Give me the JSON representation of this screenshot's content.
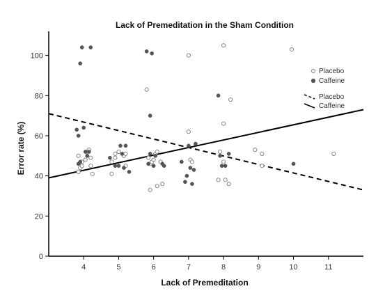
{
  "chart_data": {
    "type": "scatter",
    "title": "Lack of Premeditation in the Sham Condition",
    "xlabel": "Lack of Premeditation",
    "ylabel": "Error rate (%)",
    "xlim": [
      3,
      12
    ],
    "ylim": [
      0,
      112
    ],
    "xticks": [
      4,
      5,
      6,
      7,
      8,
      9,
      10,
      11
    ],
    "yticks": [
      0,
      20,
      40,
      60,
      80,
      100
    ],
    "grid": false,
    "legend_position": "right",
    "colors": {
      "placebo_marker": "#888888",
      "caffeine_marker": "#555555",
      "lines": "#000000"
    },
    "series": [
      {
        "name": "Placebo",
        "marker": "open-circle",
        "points": [
          [
            3.85,
            42
          ],
          [
            3.9,
            44
          ],
          [
            3.95,
            45
          ],
          [
            3.95,
            47
          ],
          [
            3.85,
            50
          ],
          [
            4.05,
            48
          ],
          [
            4.1,
            52
          ],
          [
            4.15,
            53
          ],
          [
            4.2,
            49
          ],
          [
            4.2,
            45
          ],
          [
            4.25,
            41
          ],
          [
            4.8,
            41
          ],
          [
            4.8,
            47
          ],
          [
            4.9,
            49
          ],
          [
            4.9,
            51
          ],
          [
            5.0,
            52
          ],
          [
            5.2,
            45
          ],
          [
            5.15,
            50
          ],
          [
            5.2,
            51
          ],
          [
            5.8,
            83
          ],
          [
            5.85,
            49
          ],
          [
            5.9,
            46
          ],
          [
            5.95,
            47
          ],
          [
            6.0,
            48
          ],
          [
            6.05,
            51
          ],
          [
            6.1,
            52
          ],
          [
            6.2,
            47
          ],
          [
            6.25,
            36
          ],
          [
            6.1,
            35
          ],
          [
            5.9,
            33
          ],
          [
            7.0,
            100
          ],
          [
            7.0,
            62
          ],
          [
            7.05,
            48
          ],
          [
            7.1,
            47
          ],
          [
            7.9,
            52
          ],
          [
            7.85,
            38
          ],
          [
            8.0,
            47
          ],
          [
            8.0,
            66
          ],
          [
            8.0,
            105
          ],
          [
            8.05,
            38
          ],
          [
            8.15,
            36
          ],
          [
            8.2,
            78
          ],
          [
            8.9,
            53
          ],
          [
            9.1,
            51
          ],
          [
            9.1,
            45
          ],
          [
            9.95,
            103
          ],
          [
            11.15,
            51
          ]
        ]
      },
      {
        "name": "Caffeine",
        "marker": "filled-circle",
        "points": [
          [
            3.8,
            63
          ],
          [
            3.85,
            60
          ],
          [
            3.85,
            46
          ],
          [
            3.9,
            47
          ],
          [
            3.9,
            96
          ],
          [
            3.95,
            104
          ],
          [
            4.0,
            64
          ],
          [
            4.05,
            52
          ],
          [
            4.1,
            50
          ],
          [
            4.15,
            52
          ],
          [
            4.2,
            104
          ],
          [
            4.75,
            49
          ],
          [
            4.9,
            45
          ],
          [
            5.0,
            45
          ],
          [
            5.05,
            55
          ],
          [
            5.1,
            51
          ],
          [
            5.15,
            44
          ],
          [
            5.2,
            55
          ],
          [
            5.3,
            42
          ],
          [
            5.8,
            102
          ],
          [
            5.85,
            46
          ],
          [
            5.9,
            51
          ],
          [
            5.9,
            70
          ],
          [
            5.95,
            101
          ],
          [
            6.0,
            45
          ],
          [
            6.05,
            50
          ],
          [
            6.3,
            45
          ],
          [
            6.25,
            46
          ],
          [
            6.8,
            47
          ],
          [
            6.9,
            37
          ],
          [
            6.95,
            40
          ],
          [
            7.0,
            55
          ],
          [
            7.05,
            44
          ],
          [
            7.1,
            36
          ],
          [
            7.15,
            43
          ],
          [
            7.2,
            56
          ],
          [
            7.85,
            80
          ],
          [
            7.9,
            50
          ],
          [
            7.95,
            45
          ],
          [
            8.05,
            45
          ],
          [
            8.15,
            51
          ],
          [
            10.0,
            46
          ]
        ]
      }
    ],
    "fit_lines": [
      {
        "name": "Placebo",
        "style": "dashed",
        "x": [
          3,
          12
        ],
        "y": [
          71,
          33
        ]
      },
      {
        "name": "Caffeine",
        "style": "solid",
        "x": [
          3,
          12
        ],
        "y": [
          39,
          73
        ]
      }
    ]
  }
}
